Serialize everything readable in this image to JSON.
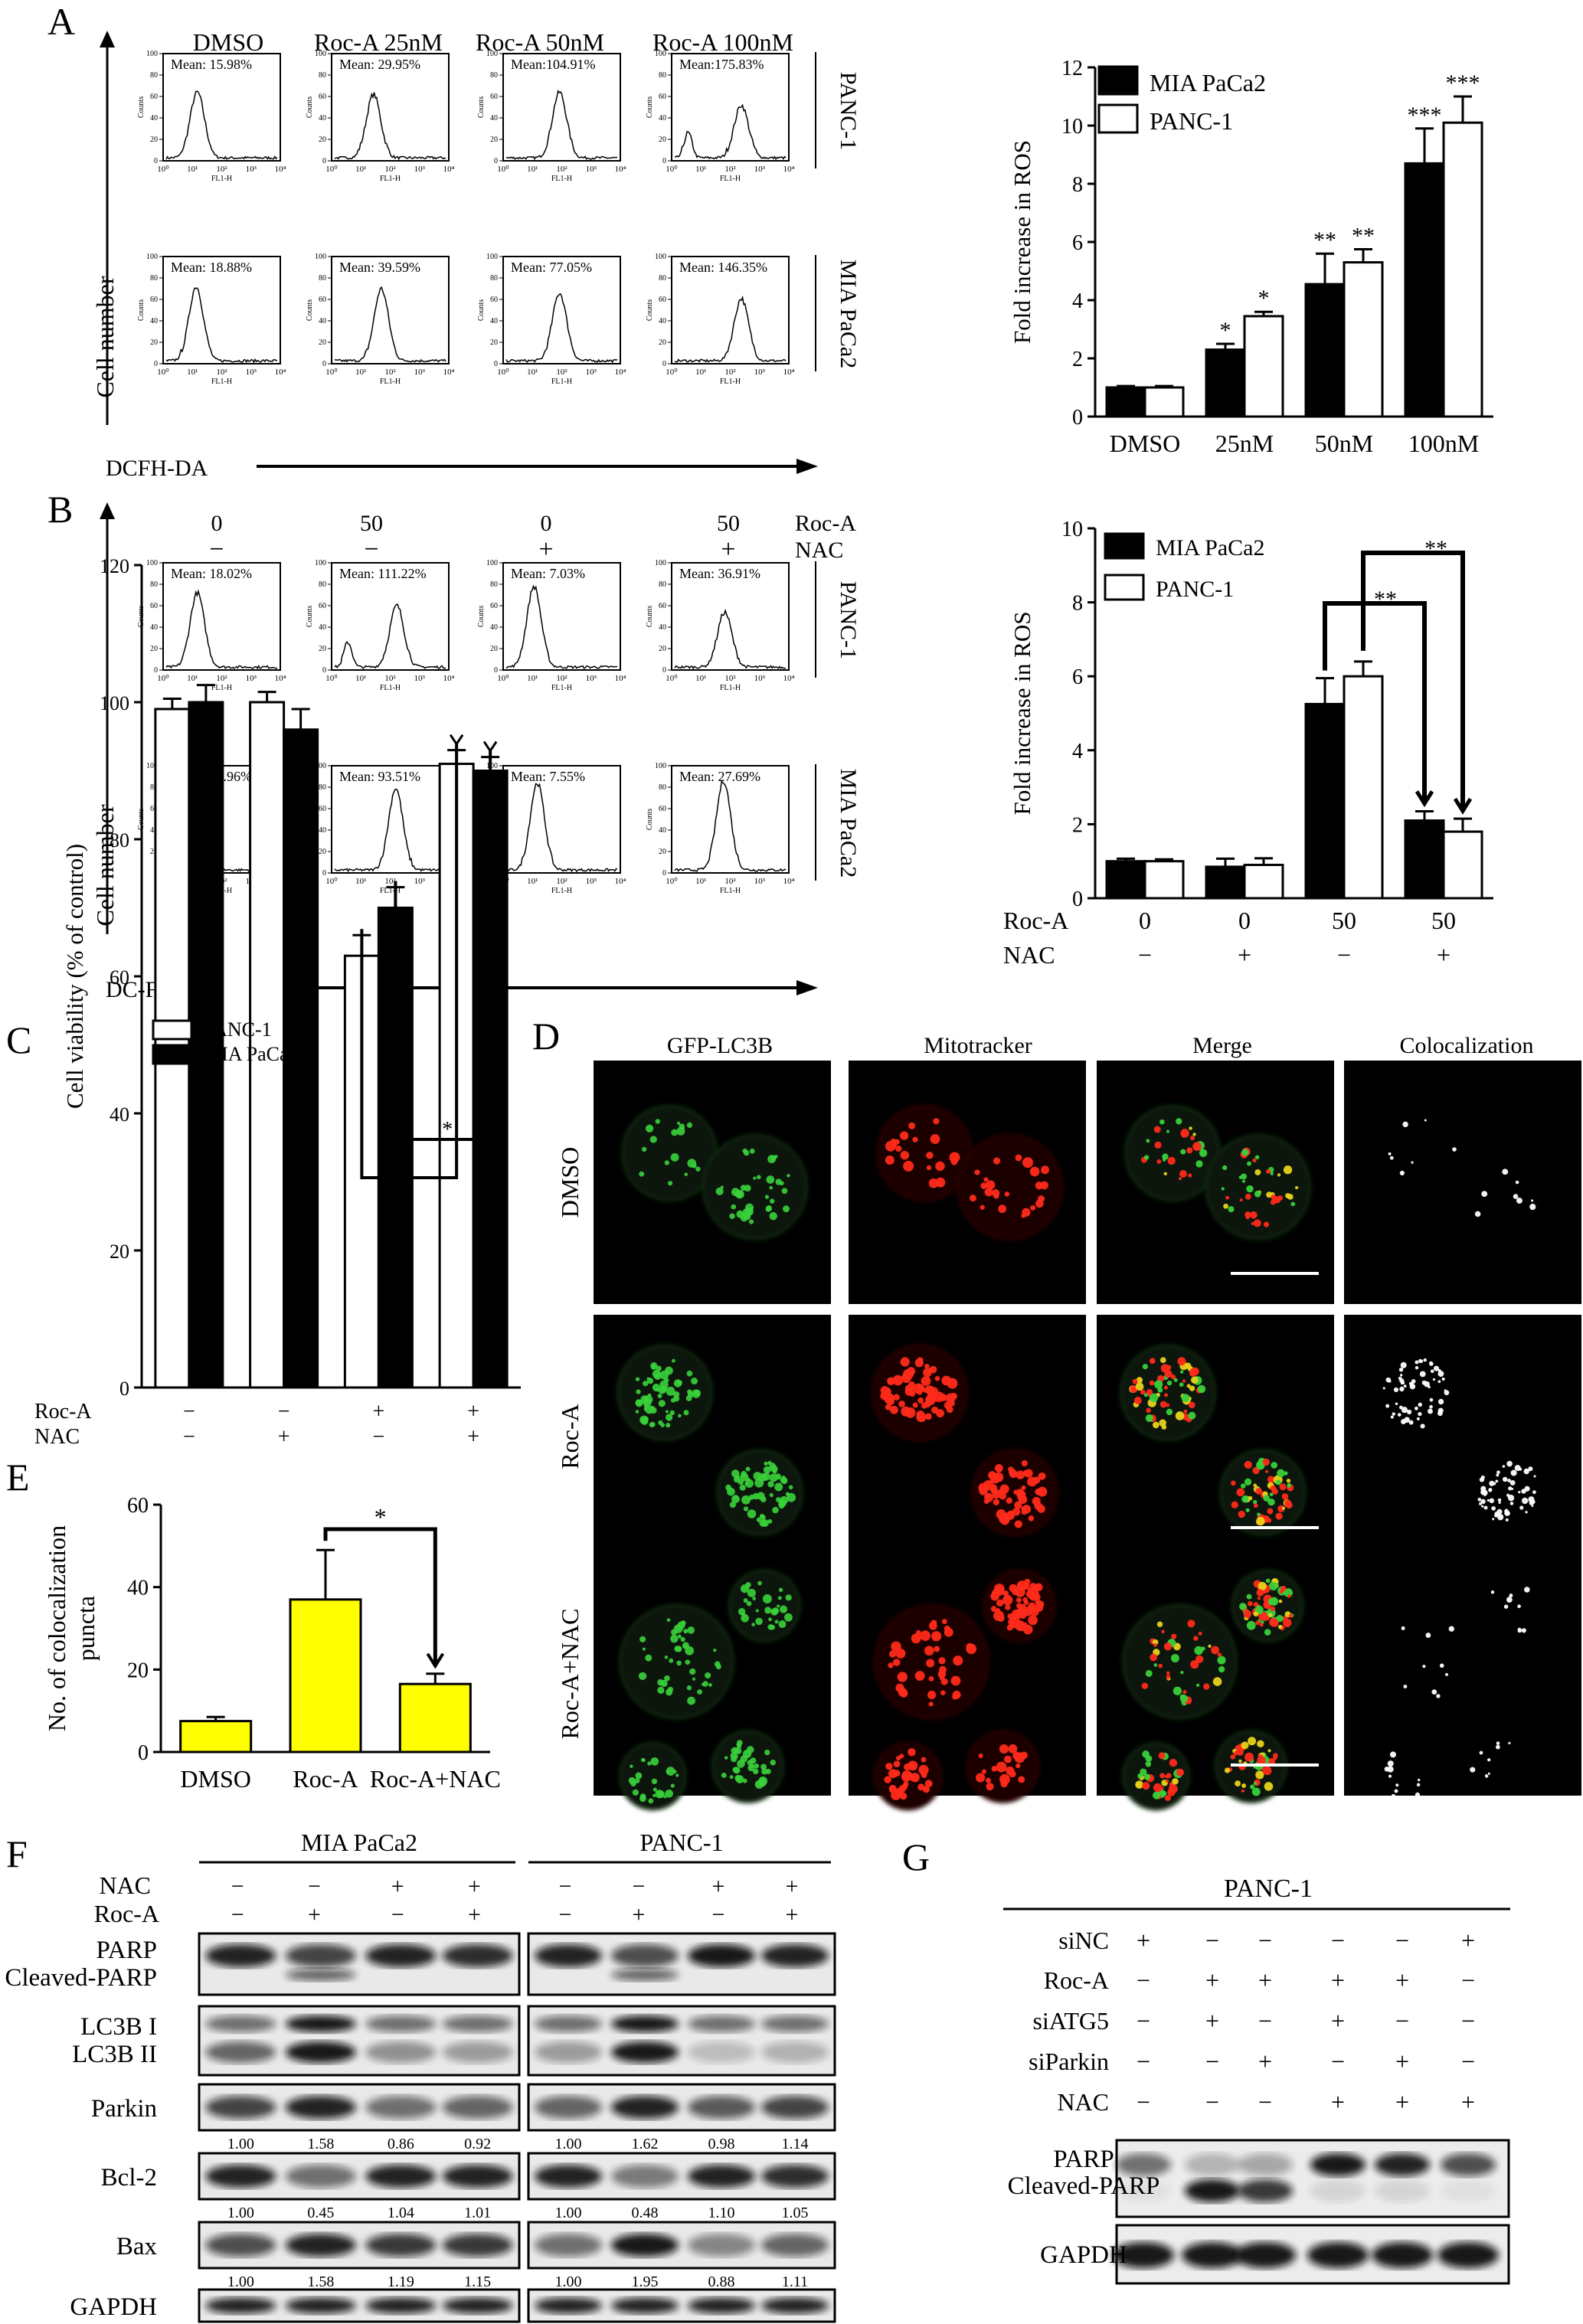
{
  "panels": {
    "A": {
      "label": "A",
      "conditions": [
        "DMSO",
        "Roc-A 25nM",
        "Roc-A 50nM",
        "Roc-A 100nM"
      ],
      "rows": [
        {
          "label": "PANC-1",
          "means": [
            "Mean: 15.98%",
            "Mean: 29.95%",
            "Mean:104.91%",
            "Mean:175.83%"
          ],
          "peaks": [
            0.6,
            0.58,
            0.6,
            0.48
          ],
          "peak_x": [
            0.28,
            0.35,
            0.48,
            0.6
          ]
        },
        {
          "label": "MIA PaCa2",
          "means": [
            "Mean: 18.88%",
            "Mean: 39.59%",
            "Mean: 77.05%",
            "Mean: 146.35%"
          ],
          "peaks": [
            0.68,
            0.66,
            0.62,
            0.57
          ],
          "peak_x": [
            0.27,
            0.42,
            0.48,
            0.6
          ]
        }
      ],
      "ylabel": "Cell  number",
      "xlabel": "DCFH-DA"
    },
    "B": {
      "label": "B",
      "rocA_values": [
        "0",
        "50",
        "0",
        "50"
      ],
      "nac_values": [
        "−",
        "−",
        "+",
        "+"
      ],
      "rocA_label": "Roc-A",
      "nac_label": "NAC",
      "rows": [
        {
          "label": "PANC-1",
          "means": [
            "Mean: 18.02%",
            "Mean: 111.22%",
            "Mean: 7.03%",
            "Mean: 36.91%"
          ],
          "peaks": [
            0.68,
            0.56,
            0.74,
            0.5
          ],
          "peak_x": [
            0.28,
            0.56,
            0.25,
            0.45
          ]
        },
        {
          "label": "MIA PaCa2",
          "means": [
            "Mean: 14.96%",
            "Mean: 93.51%",
            "Mean: 7.55%",
            "Mean: 27.69%"
          ],
          "peaks": [
            0.66,
            0.75,
            0.8,
            0.82
          ],
          "peak_x": [
            0.28,
            0.55,
            0.28,
            0.44
          ]
        }
      ],
      "ylabel": "Cell  number",
      "xlabel": "DC-FHDA"
    },
    "D": {
      "label": "D",
      "columns": [
        "GFP-LC3B",
        "Mitotracker",
        "Merge",
        "Colocalization"
      ],
      "rows": [
        "DMSO",
        "Roc-A",
        "Roc-A+NAC"
      ]
    },
    "F": {
      "label": "F",
      "groups": [
        "MIA PaCa2",
        "PANC-1"
      ],
      "nac_label": "NAC",
      "roca_label": "Roc-A",
      "nac_signs": [
        "−",
        "−",
        "+",
        "+"
      ],
      "roca_signs": [
        "−",
        "+",
        "−",
        "+"
      ],
      "blots": [
        {
          "name": "PARP\nCleaved-PARP",
          "lines": [
            "PARP",
            "Cleaved-PARP"
          ]
        },
        {
          "name": "LC3B",
          "lines": [
            "LC3B I",
            "LC3B II"
          ]
        },
        {
          "name": "Parkin",
          "lines": [
            "Parkin"
          ],
          "values": [
            [
              "1.00",
              "1.58",
              "0.86",
              "0.92"
            ],
            [
              "1.00",
              "1.62",
              "0.98",
              "1.14"
            ]
          ]
        },
        {
          "name": "Bcl-2",
          "lines": [
            "Bcl-2"
          ],
          "values": [
            [
              "1.00",
              "0.45",
              "1.04",
              "1.01"
            ],
            [
              "1.00",
              "0.48",
              "1.10",
              "1.05"
            ]
          ]
        },
        {
          "name": "Bax",
          "lines": [
            "Bax"
          ],
          "values": [
            [
              "1.00",
              "1.58",
              "1.19",
              "1.15"
            ],
            [
              "1.00",
              "1.95",
              "0.88",
              "1.11"
            ]
          ]
        },
        {
          "name": "GAPDH",
          "lines": [
            "GAPDH"
          ]
        }
      ]
    },
    "G": {
      "label": "G",
      "title": "PANC-1",
      "rows": [
        {
          "label": "siNC",
          "signs": [
            "+",
            "−",
            "−",
            "−",
            "−",
            "+"
          ]
        },
        {
          "label": "Roc-A",
          "signs": [
            "−",
            "+",
            "+",
            "+",
            "+",
            "−"
          ]
        },
        {
          "label": "siATG5",
          "signs": [
            "−",
            "+",
            "−",
            "+",
            "−",
            "−"
          ]
        },
        {
          "label": "siParkin",
          "signs": [
            "−",
            "−",
            "+",
            "−",
            "+",
            "−"
          ]
        },
        {
          "label": "NAC",
          "signs": [
            "−",
            "−",
            "−",
            "+",
            "+",
            "+"
          ]
        }
      ],
      "blots": [
        {
          "lines": [
            "PARP",
            "Cleaved-PARP"
          ]
        },
        {
          "lines": [
            "GAPDH"
          ]
        }
      ]
    },
    "C_label": "C",
    "E_label": "E"
  },
  "chart_data": [
    {
      "panel": "A",
      "type": "bar",
      "categories": [
        "DMSO",
        "25nM",
        "50nM",
        "100nM"
      ],
      "series": [
        {
          "name": "MIA PaCa2",
          "values": [
            1.0,
            2.3,
            4.55,
            8.7
          ],
          "errors": [
            0.05,
            0.2,
            1.05,
            1.2
          ],
          "color": "#000000"
        },
        {
          "name": "PANC-1",
          "values": [
            1.0,
            3.45,
            5.3,
            10.1
          ],
          "errors": [
            0.05,
            0.15,
            0.45,
            0.9
          ],
          "color": "#ffffff"
        }
      ],
      "annotations": [
        [
          "",
          ""
        ],
        [
          "*",
          "*"
        ],
        [
          "**",
          "**"
        ],
        [
          "***",
          "***"
        ]
      ],
      "ylabel": "Fold increase in ROS",
      "ylim": [
        0,
        12
      ],
      "yticks": [
        "0",
        "2",
        "4",
        "6",
        "8",
        "10",
        "12"
      ],
      "legend": "top-left"
    },
    {
      "panel": "B",
      "type": "bar",
      "categories": [
        "0|−",
        "0|+",
        "50|−",
        "50|+"
      ],
      "cat_row1_label": "Roc-A",
      "cat_row2_label": "NAC",
      "cat_row1": [
        "0",
        "0",
        "50",
        "50"
      ],
      "cat_row2": [
        "−",
        "+",
        "−",
        "+"
      ],
      "series": [
        {
          "name": "MIA PaCa2",
          "values": [
            1.0,
            0.85,
            5.25,
            2.1
          ],
          "errors": [
            0.07,
            0.22,
            0.7,
            0.25
          ],
          "color": "#000000"
        },
        {
          "name": "PANC-1",
          "values": [
            1.0,
            0.9,
            6.0,
            1.8
          ],
          "errors": [
            0.05,
            0.18,
            0.4,
            0.35
          ],
          "color": "#ffffff"
        }
      ],
      "significance": [
        "**",
        "**"
      ],
      "ylabel": "Fold increase in ROS",
      "ylim": [
        0,
        10
      ],
      "yticks": [
        "0",
        "2",
        "4",
        "6",
        "8",
        "10"
      ],
      "legend": "top-left"
    },
    {
      "panel": "C",
      "type": "bar",
      "categories": [
        "−|−",
        "−|+",
        "+|−",
        "+|+"
      ],
      "cat_row1_label": "Roc-A",
      "cat_row2_label": "NAC",
      "cat_row1": [
        "−",
        "−",
        "+",
        "+"
      ],
      "cat_row2": [
        "−",
        "+",
        "−",
        "+"
      ],
      "series": [
        {
          "name": "PANC-1",
          "values": [
            99,
            100,
            63,
            91
          ],
          "errors": [
            1.5,
            1.5,
            3,
            2
          ],
          "color": "#ffffff"
        },
        {
          "name": "MIA PaCa2",
          "values": [
            100,
            96,
            70,
            90
          ],
          "errors": [
            2.5,
            3,
            3,
            2
          ],
          "color": "#000000"
        }
      ],
      "significance": [
        "*",
        "*"
      ],
      "ylabel": "Cell viability  (% of control)",
      "ylim": [
        0,
        120
      ],
      "yticks": [
        "0",
        "20",
        "40",
        "60",
        "80",
        "100",
        "120"
      ],
      "legend": "top-left"
    },
    {
      "panel": "E",
      "type": "bar",
      "categories": [
        "DMSO",
        "Roc-A",
        "Roc-A+NAC"
      ],
      "values": [
        7.5,
        37,
        16.5
      ],
      "errors": [
        1,
        12,
        2.5
      ],
      "color": "#ffff00",
      "significance": [
        "*"
      ],
      "ylabel": "No. of colocalization\npuncta",
      "ylim": [
        0,
        60
      ],
      "yticks": [
        "0",
        "20",
        "40",
        "60"
      ]
    }
  ]
}
